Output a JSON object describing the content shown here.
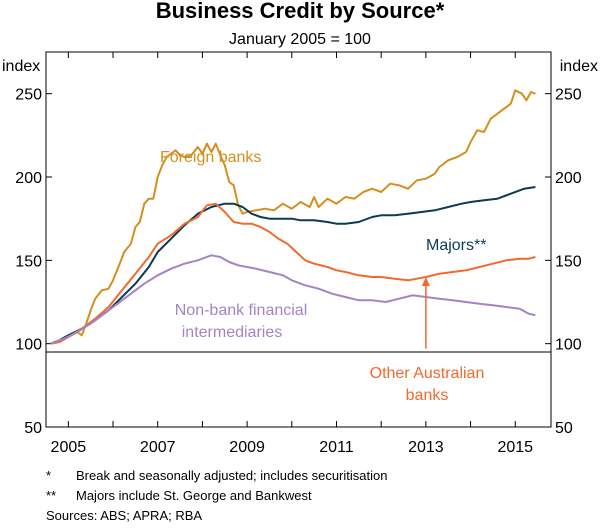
{
  "chart_data": {
    "type": "line",
    "title": "Business Credit by Source*",
    "subtitle": "January 2005 = 100",
    "left_unit": "index",
    "right_unit": "index",
    "xlim": [
      2004.5,
      2015.8
    ],
    "ylim": [
      50,
      275
    ],
    "y_ticks": [
      50,
      100,
      150,
      200,
      250
    ],
    "x_ticks": [
      2005,
      2007,
      2009,
      2011,
      2013,
      2015
    ],
    "grid": "none",
    "series": [
      {
        "name": "Foreign banks",
        "label": "Foreign banks",
        "color": "#d38f1d",
        "points": [
          [
            2004.6,
            100
          ],
          [
            2004.8,
            101
          ],
          [
            2005.0,
            104
          ],
          [
            2005.2,
            107
          ],
          [
            2005.3,
            105
          ],
          [
            2005.4,
            112
          ],
          [
            2005.5,
            120
          ],
          [
            2005.6,
            127
          ],
          [
            2005.75,
            132
          ],
          [
            2005.9,
            133
          ],
          [
            2006.0,
            138
          ],
          [
            2006.15,
            148
          ],
          [
            2006.25,
            155
          ],
          [
            2006.4,
            160
          ],
          [
            2006.5,
            170
          ],
          [
            2006.6,
            173
          ],
          [
            2006.7,
            184
          ],
          [
            2006.8,
            187
          ],
          [
            2006.9,
            187
          ],
          [
            2007.0,
            200
          ],
          [
            2007.1,
            207
          ],
          [
            2007.2,
            212
          ],
          [
            2007.3,
            214
          ],
          [
            2007.4,
            216
          ],
          [
            2007.5,
            213
          ],
          [
            2007.6,
            212
          ],
          [
            2007.75,
            213
          ],
          [
            2007.9,
            218
          ],
          [
            2008.0,
            214
          ],
          [
            2008.1,
            220
          ],
          [
            2008.2,
            215
          ],
          [
            2008.3,
            220
          ],
          [
            2008.4,
            213
          ],
          [
            2008.5,
            207
          ],
          [
            2008.6,
            197
          ],
          [
            2008.7,
            195
          ],
          [
            2008.8,
            183
          ],
          [
            2008.9,
            178
          ],
          [
            2009.0,
            179
          ],
          [
            2009.2,
            180
          ],
          [
            2009.4,
            181
          ],
          [
            2009.6,
            180
          ],
          [
            2009.8,
            184
          ],
          [
            2010.0,
            181
          ],
          [
            2010.2,
            185
          ],
          [
            2010.4,
            182
          ],
          [
            2010.5,
            188
          ],
          [
            2010.6,
            182
          ],
          [
            2010.8,
            187
          ],
          [
            2011.0,
            184
          ],
          [
            2011.2,
            188
          ],
          [
            2011.4,
            187
          ],
          [
            2011.6,
            191
          ],
          [
            2011.8,
            193
          ],
          [
            2012.0,
            191
          ],
          [
            2012.2,
            196
          ],
          [
            2012.4,
            195
          ],
          [
            2012.6,
            193
          ],
          [
            2012.8,
            198
          ],
          [
            2013.0,
            199
          ],
          [
            2013.2,
            202
          ],
          [
            2013.3,
            206
          ],
          [
            2013.5,
            210
          ],
          [
            2013.7,
            212
          ],
          [
            2013.9,
            215
          ],
          [
            2014.0,
            221
          ],
          [
            2014.15,
            228
          ],
          [
            2014.3,
            227
          ],
          [
            2014.45,
            235
          ],
          [
            2014.6,
            238
          ],
          [
            2014.75,
            241
          ],
          [
            2014.9,
            244
          ],
          [
            2015.0,
            252
          ],
          [
            2015.15,
            250
          ],
          [
            2015.25,
            246
          ],
          [
            2015.35,
            251
          ],
          [
            2015.45,
            250
          ]
        ]
      },
      {
        "name": "Majors**",
        "label": "Majors**",
        "color": "#0b3b53",
        "points": [
          [
            2004.6,
            100
          ],
          [
            2004.8,
            102
          ],
          [
            2005.0,
            105
          ],
          [
            2005.3,
            109
          ],
          [
            2005.6,
            114
          ],
          [
            2005.9,
            120
          ],
          [
            2006.2,
            128
          ],
          [
            2006.5,
            136
          ],
          [
            2006.8,
            146
          ],
          [
            2007.0,
            155
          ],
          [
            2007.3,
            163
          ],
          [
            2007.6,
            171
          ],
          [
            2007.9,
            178
          ],
          [
            2008.2,
            182
          ],
          [
            2008.5,
            184
          ],
          [
            2008.7,
            184
          ],
          [
            2008.9,
            182
          ],
          [
            2009.1,
            178
          ],
          [
            2009.3,
            176
          ],
          [
            2009.5,
            175
          ],
          [
            2009.8,
            175
          ],
          [
            2010.0,
            175
          ],
          [
            2010.2,
            174
          ],
          [
            2010.5,
            174
          ],
          [
            2010.8,
            173
          ],
          [
            2011.0,
            172
          ],
          [
            2011.2,
            172
          ],
          [
            2011.5,
            173
          ],
          [
            2011.8,
            176
          ],
          [
            2012.0,
            177
          ],
          [
            2012.3,
            177
          ],
          [
            2012.6,
            178
          ],
          [
            2012.9,
            179
          ],
          [
            2013.2,
            180
          ],
          [
            2013.5,
            182
          ],
          [
            2013.8,
            184
          ],
          [
            2014.0,
            185
          ],
          [
            2014.3,
            186
          ],
          [
            2014.6,
            187
          ],
          [
            2014.9,
            190
          ],
          [
            2015.2,
            193
          ],
          [
            2015.45,
            194
          ]
        ]
      },
      {
        "name": "Other Australian banks",
        "label": "Other Australian banks",
        "color": "#f16a2c",
        "points": [
          [
            2004.6,
            100
          ],
          [
            2004.8,
            101
          ],
          [
            2005.0,
            104
          ],
          [
            2005.3,
            109
          ],
          [
            2005.6,
            115
          ],
          [
            2005.9,
            122
          ],
          [
            2006.2,
            132
          ],
          [
            2006.5,
            142
          ],
          [
            2006.8,
            152
          ],
          [
            2007.0,
            160
          ],
          [
            2007.3,
            165
          ],
          [
            2007.6,
            172
          ],
          [
            2007.9,
            176
          ],
          [
            2008.1,
            183
          ],
          [
            2008.3,
            184
          ],
          [
            2008.5,
            179
          ],
          [
            2008.7,
            173
          ],
          [
            2008.9,
            172
          ],
          [
            2009.1,
            172
          ],
          [
            2009.3,
            170
          ],
          [
            2009.5,
            167
          ],
          [
            2009.7,
            163
          ],
          [
            2009.9,
            160
          ],
          [
            2010.1,
            155
          ],
          [
            2010.3,
            150
          ],
          [
            2010.5,
            148
          ],
          [
            2010.8,
            146
          ],
          [
            2011.0,
            144
          ],
          [
            2011.2,
            143
          ],
          [
            2011.5,
            141
          ],
          [
            2011.8,
            140
          ],
          [
            2012.0,
            140
          ],
          [
            2012.3,
            139
          ],
          [
            2012.6,
            138
          ],
          [
            2012.8,
            139
          ],
          [
            2013.0,
            140
          ],
          [
            2013.3,
            142
          ],
          [
            2013.6,
            143
          ],
          [
            2013.9,
            144
          ],
          [
            2014.2,
            146
          ],
          [
            2014.5,
            148
          ],
          [
            2014.8,
            150
          ],
          [
            2015.1,
            151
          ],
          [
            2015.3,
            151
          ],
          [
            2015.45,
            152
          ]
        ]
      },
      {
        "name": "Non-bank financial intermediaries",
        "label": "Non-bank financial intermediaries",
        "color": "#a284c6",
        "points": [
          [
            2004.6,
            100
          ],
          [
            2004.9,
            103
          ],
          [
            2005.2,
            107
          ],
          [
            2005.5,
            112
          ],
          [
            2005.8,
            118
          ],
          [
            2006.1,
            124
          ],
          [
            2006.4,
            130
          ],
          [
            2006.7,
            136
          ],
          [
            2007.0,
            141
          ],
          [
            2007.3,
            145
          ],
          [
            2007.6,
            148
          ],
          [
            2007.9,
            150
          ],
          [
            2008.2,
            153
          ],
          [
            2008.4,
            152
          ],
          [
            2008.6,
            149
          ],
          [
            2008.8,
            147
          ],
          [
            2009.0,
            146
          ],
          [
            2009.2,
            145
          ],
          [
            2009.5,
            143
          ],
          [
            2009.8,
            141
          ],
          [
            2010.0,
            138
          ],
          [
            2010.3,
            135
          ],
          [
            2010.6,
            133
          ],
          [
            2010.9,
            130
          ],
          [
            2011.2,
            128
          ],
          [
            2011.5,
            126
          ],
          [
            2011.8,
            126
          ],
          [
            2012.1,
            125
          ],
          [
            2012.4,
            127
          ],
          [
            2012.7,
            129
          ],
          [
            2013.0,
            128
          ],
          [
            2013.3,
            127
          ],
          [
            2013.6,
            126
          ],
          [
            2013.9,
            125
          ],
          [
            2014.2,
            124
          ],
          [
            2014.5,
            123
          ],
          [
            2014.8,
            122
          ],
          [
            2015.1,
            121
          ],
          [
            2015.3,
            118
          ],
          [
            2015.45,
            117
          ]
        ]
      }
    ],
    "annotation_arrow": {
      "from_x": 2013.0,
      "from_y": 97,
      "to_x": 2013.0,
      "to_y": 140
    }
  },
  "footnotes": [
    {
      "mark": "*",
      "text": "Break and seasonally adjusted; includes securitisation"
    },
    {
      "mark": "**",
      "text": "Majors include St. George and Bankwest"
    }
  ],
  "sources": "Sources:  ABS; APRA; RBA"
}
